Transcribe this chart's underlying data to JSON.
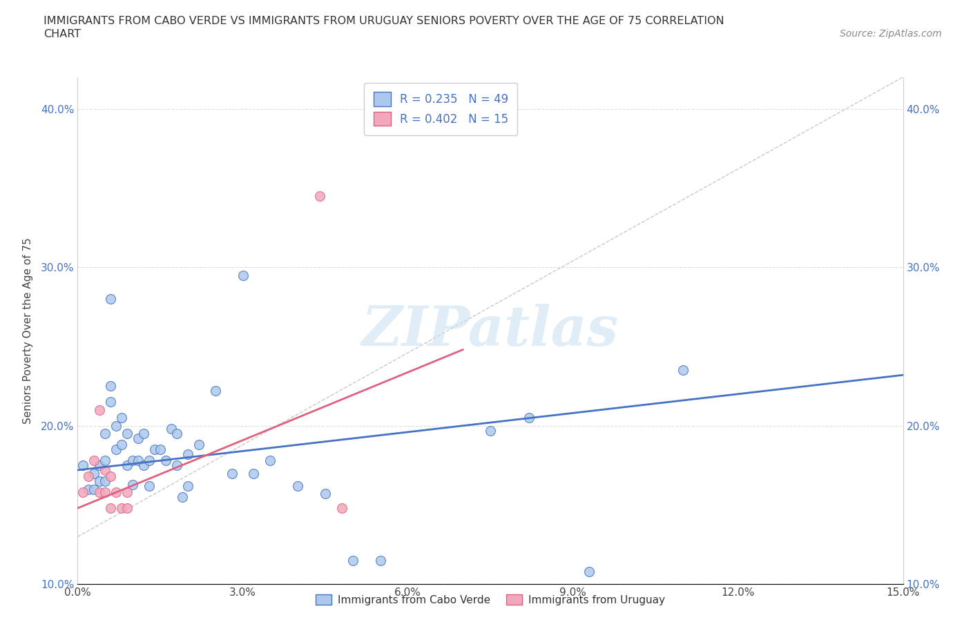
{
  "title_line1": "IMMIGRANTS FROM CABO VERDE VS IMMIGRANTS FROM URUGUAY SENIORS POVERTY OVER THE AGE OF 75 CORRELATION",
  "title_line2": "CHART",
  "source": "Source: ZipAtlas.com",
  "ylabel": "Seniors Poverty Over the Age of 75",
  "xlim": [
    0.0,
    0.15
  ],
  "ylim": [
    0.13,
    0.42
  ],
  "xticks": [
    0.0,
    0.03,
    0.06,
    0.09,
    0.12,
    0.15
  ],
  "xticklabels": [
    "0.0%",
    "3.0%",
    "6.0%",
    "9.0%",
    "12.0%",
    "15.0%"
  ],
  "yticks": [
    0.1,
    0.2,
    0.3,
    0.4
  ],
  "yticklabels": [
    "10.0%",
    "20.0%",
    "30.0%",
    "40.0%"
  ],
  "R_cabo": 0.235,
  "N_cabo": 49,
  "R_uruguay": 0.402,
  "N_uruguay": 15,
  "cabo_color": "#adc8ed",
  "uruguay_color": "#f2a8bc",
  "cabo_line_color": "#4472c4",
  "uruguay_line_color": "#e06080",
  "ref_line_color": "#c8c8c8",
  "watermark": "ZIPatlas",
  "cabo_x": [
    0.001,
    0.002,
    0.003,
    0.003,
    0.004,
    0.004,
    0.005,
    0.005,
    0.005,
    0.006,
    0.006,
    0.006,
    0.007,
    0.007,
    0.008,
    0.008,
    0.009,
    0.009,
    0.01,
    0.01,
    0.011,
    0.011,
    0.012,
    0.012,
    0.013,
    0.013,
    0.014,
    0.015,
    0.016,
    0.017,
    0.018,
    0.018,
    0.019,
    0.02,
    0.02,
    0.022,
    0.025,
    0.028,
    0.03,
    0.032,
    0.035,
    0.04,
    0.045,
    0.05,
    0.055,
    0.075,
    0.082,
    0.093,
    0.11
  ],
  "cabo_y": [
    0.175,
    0.16,
    0.17,
    0.16,
    0.175,
    0.165,
    0.195,
    0.178,
    0.165,
    0.28,
    0.225,
    0.215,
    0.2,
    0.185,
    0.205,
    0.188,
    0.195,
    0.175,
    0.178,
    0.163,
    0.192,
    0.178,
    0.195,
    0.175,
    0.178,
    0.162,
    0.185,
    0.185,
    0.178,
    0.198,
    0.195,
    0.175,
    0.155,
    0.182,
    0.162,
    0.188,
    0.222,
    0.17,
    0.295,
    0.17,
    0.178,
    0.162,
    0.157,
    0.115,
    0.115,
    0.197,
    0.205,
    0.108,
    0.235
  ],
  "uruguay_x": [
    0.001,
    0.002,
    0.003,
    0.004,
    0.004,
    0.005,
    0.005,
    0.006,
    0.006,
    0.007,
    0.008,
    0.009,
    0.009,
    0.044,
    0.048
  ],
  "uruguay_y": [
    0.158,
    0.168,
    0.178,
    0.158,
    0.21,
    0.172,
    0.158,
    0.168,
    0.148,
    0.158,
    0.148,
    0.148,
    0.158,
    0.345,
    0.148
  ],
  "cabo_trend_x": [
    0.0,
    0.15
  ],
  "cabo_trend_y": [
    0.172,
    0.232
  ],
  "uruguay_trend_x": [
    0.0,
    0.07
  ],
  "uruguay_trend_y": [
    0.148,
    0.248
  ]
}
